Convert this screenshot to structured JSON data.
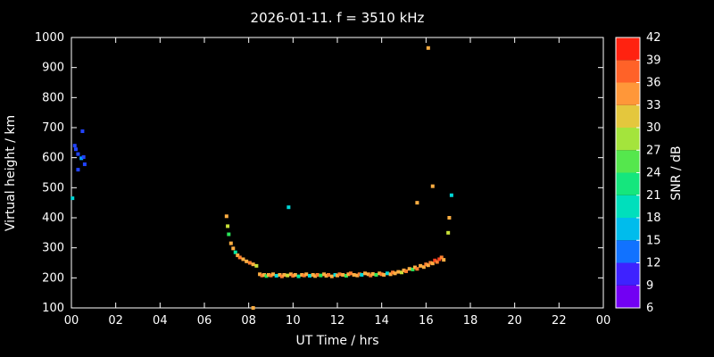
{
  "chart_data": {
    "type": "scatter",
    "title": "2026-01-11. f = 3510 kHz",
    "xlabel": "UT Time / hrs",
    "ylabel": "Virtual height / km",
    "xlim": [
      0,
      24
    ],
    "ylim": [
      100,
      1000
    ],
    "background": "#000000",
    "axis_color": "#ffffff",
    "grid": false,
    "x_ticks": [
      {
        "v": 0,
        "label": "00"
      },
      {
        "v": 2,
        "label": "02"
      },
      {
        "v": 4,
        "label": "04"
      },
      {
        "v": 6,
        "label": "06"
      },
      {
        "v": 8,
        "label": "08"
      },
      {
        "v": 10,
        "label": "10"
      },
      {
        "v": 12,
        "label": "12"
      },
      {
        "v": 14,
        "label": "14"
      },
      {
        "v": 16,
        "label": "16"
      },
      {
        "v": 18,
        "label": "18"
      },
      {
        "v": 20,
        "label": "20"
      },
      {
        "v": 22,
        "label": "22"
      },
      {
        "v": 24,
        "label": "00"
      }
    ],
    "y_ticks": [
      100,
      200,
      300,
      400,
      500,
      600,
      700,
      800,
      900,
      1000
    ],
    "colorbar": {
      "label": "SNR / dB",
      "min": 6,
      "max": 42,
      "ticks": [
        6,
        9,
        12,
        15,
        18,
        21,
        24,
        27,
        30,
        33,
        36,
        39,
        42
      ],
      "stops": [
        {
          "v": 6,
          "c": "#8a00e6"
        },
        {
          "v": 9,
          "c": "#5a00ff"
        },
        {
          "v": 12,
          "c": "#2244ff"
        },
        {
          "v": 15,
          "c": "#00a0ff"
        },
        {
          "v": 18,
          "c": "#00d8d8"
        },
        {
          "v": 21,
          "c": "#00e6a0"
        },
        {
          "v": 24,
          "c": "#2ae65a"
        },
        {
          "v": 27,
          "c": "#80e840"
        },
        {
          "v": 30,
          "c": "#c8e038"
        },
        {
          "v": 33,
          "c": "#ffae42"
        },
        {
          "v": 36,
          "c": "#ff8030"
        },
        {
          "v": 39,
          "c": "#ff4420"
        },
        {
          "v": 42,
          "c": "#ff0000"
        }
      ]
    },
    "points": [
      [
        0.05,
        465,
        18
      ],
      [
        0.15,
        640,
        12
      ],
      [
        0.2,
        628,
        12
      ],
      [
        0.3,
        612,
        12
      ],
      [
        0.3,
        560,
        12
      ],
      [
        0.45,
        598,
        15
      ],
      [
        0.5,
        688,
        12
      ],
      [
        0.55,
        602,
        12
      ],
      [
        0.6,
        578,
        12
      ],
      [
        7.0,
        405,
        33
      ],
      [
        7.05,
        372,
        30
      ],
      [
        7.1,
        345,
        24
      ],
      [
        7.2,
        315,
        33
      ],
      [
        7.3,
        298,
        33
      ],
      [
        7.4,
        285,
        21
      ],
      [
        7.5,
        275,
        33
      ],
      [
        7.6,
        268,
        36
      ],
      [
        7.75,
        262,
        33
      ],
      [
        7.9,
        255,
        33
      ],
      [
        8.05,
        250,
        36
      ],
      [
        8.2,
        245,
        33
      ],
      [
        8.2,
        100,
        33
      ],
      [
        8.35,
        240,
        30
      ],
      [
        8.5,
        212,
        33
      ],
      [
        8.6,
        208,
        36
      ],
      [
        8.7,
        210,
        33
      ],
      [
        8.8,
        206,
        24
      ],
      [
        8.9,
        210,
        33
      ],
      [
        9.0,
        208,
        36
      ],
      [
        9.1,
        212,
        33
      ],
      [
        9.25,
        207,
        18
      ],
      [
        9.4,
        210,
        33
      ],
      [
        9.5,
        205,
        36
      ],
      [
        9.6,
        210,
        33
      ],
      [
        9.75,
        208,
        30
      ],
      [
        9.8,
        435,
        18
      ],
      [
        9.9,
        212,
        33
      ],
      [
        10.0,
        207,
        36
      ],
      [
        10.1,
        210,
        33
      ],
      [
        10.25,
        205,
        21
      ],
      [
        10.4,
        210,
        33
      ],
      [
        10.5,
        208,
        36
      ],
      [
        10.6,
        212,
        33
      ],
      [
        10.75,
        207,
        18
      ],
      [
        10.9,
        210,
        33
      ],
      [
        11.0,
        206,
        33
      ],
      [
        11.1,
        210,
        36
      ],
      [
        11.25,
        208,
        24
      ],
      [
        11.4,
        212,
        33
      ],
      [
        11.5,
        207,
        33
      ],
      [
        11.6,
        210,
        36
      ],
      [
        11.75,
        205,
        33
      ],
      [
        11.9,
        210,
        18
      ],
      [
        12.0,
        208,
        33
      ],
      [
        12.1,
        212,
        36
      ],
      [
        12.25,
        210,
        33
      ],
      [
        12.4,
        207,
        24
      ],
      [
        12.5,
        212,
        33
      ],
      [
        12.6,
        215,
        36
      ],
      [
        12.75,
        210,
        33
      ],
      [
        12.9,
        208,
        33
      ],
      [
        13.0,
        212,
        36
      ],
      [
        13.1,
        210,
        18
      ],
      [
        13.25,
        215,
        33
      ],
      [
        13.4,
        212,
        33
      ],
      [
        13.5,
        208,
        36
      ],
      [
        13.6,
        213,
        33
      ],
      [
        13.75,
        210,
        24
      ],
      [
        13.9,
        215,
        33
      ],
      [
        14.0,
        212,
        36
      ],
      [
        14.1,
        210,
        33
      ],
      [
        14.25,
        215,
        18
      ],
      [
        14.4,
        212,
        33
      ],
      [
        14.5,
        218,
        36
      ],
      [
        14.6,
        215,
        33
      ],
      [
        14.75,
        220,
        33
      ],
      [
        14.9,
        218,
        30
      ],
      [
        15.0,
        225,
        33
      ],
      [
        15.1,
        222,
        36
      ],
      [
        15.25,
        230,
        33
      ],
      [
        15.4,
        228,
        24
      ],
      [
        15.5,
        235,
        33
      ],
      [
        15.6,
        230,
        36
      ],
      [
        15.6,
        450,
        33
      ],
      [
        15.75,
        240,
        33
      ],
      [
        15.9,
        236,
        33
      ],
      [
        16.0,
        245,
        36
      ],
      [
        16.1,
        242,
        33
      ],
      [
        16.1,
        965,
        33
      ],
      [
        16.2,
        250,
        36
      ],
      [
        16.3,
        248,
        33
      ],
      [
        16.3,
        505,
        33
      ],
      [
        16.4,
        258,
        39
      ],
      [
        16.5,
        253,
        36
      ],
      [
        16.6,
        262,
        39
      ],
      [
        16.7,
        268,
        36
      ],
      [
        16.8,
        260,
        33
      ],
      [
        17.0,
        350,
        30
      ],
      [
        17.05,
        400,
        33
      ],
      [
        17.15,
        475,
        18
      ]
    ]
  }
}
